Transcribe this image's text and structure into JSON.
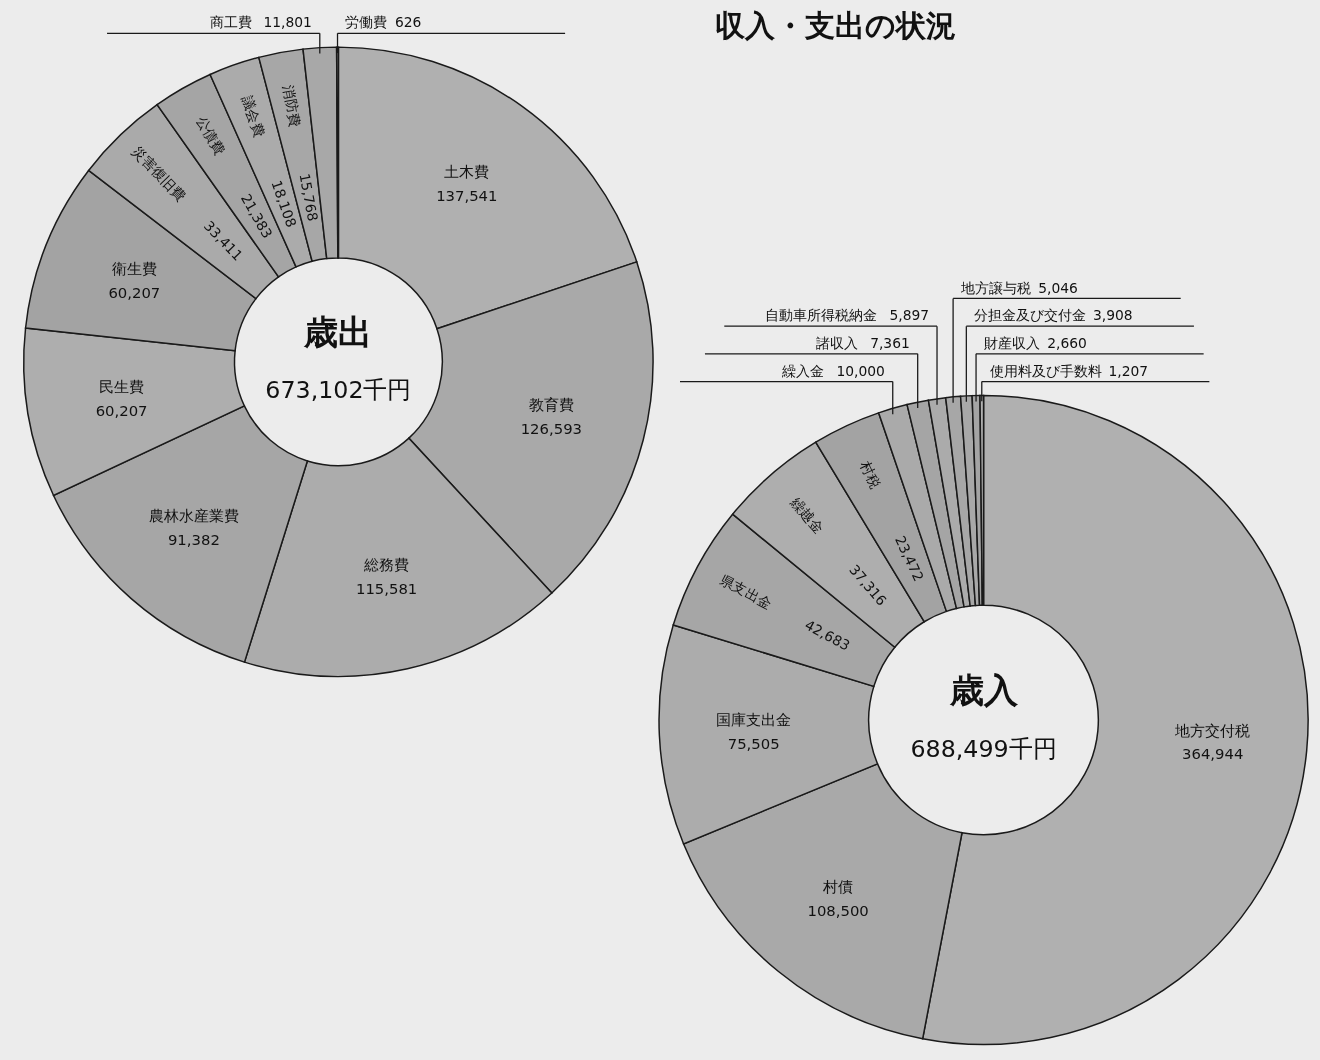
{
  "chart_data": [
    {
      "type": "donut",
      "title": "歳出",
      "annotations": [
        "673,102千円"
      ],
      "value_labels": [
        "137,541",
        "126,593",
        "115,581",
        "91,382",
        "60,207",
        "60,207",
        "33,411",
        "21,383",
        "18,108",
        "15,768",
        "11,801",
        "626"
      ],
      "categories": [
        "土木費",
        "教育費",
        "総務費",
        "農林水産業費",
        "民生費",
        "衛生費",
        "災害復旧費",
        "公債費",
        "議会費",
        "消防費",
        "商工費",
        "労働費"
      ],
      "values": [
        137541,
        126593,
        115581,
        91382,
        60207,
        60207,
        33411,
        21383,
        18108,
        15768,
        11801,
        626
      ],
      "colors": [
        "#b0b0b0",
        "#a9a9a9",
        "#acacac",
        "#a6a6a6",
        "#aeaeae",
        "#a3a3a3",
        "#aaaaaa",
        "#a5a5a5",
        "#ababab",
        "#a7a7a7",
        "#a8a8a8",
        "#a4a4a4"
      ]
    },
    {
      "type": "donut",
      "title": "歳入",
      "annotations": [
        "688,499千円",
        "収入・支出の状況"
      ],
      "value_labels": [
        "364,944",
        "108,500",
        "75,505",
        "42,683",
        "37,316",
        "23,472",
        "10,000",
        "7,361",
        "5,897",
        "5,046",
        "3,908",
        "2,660",
        "1,207"
      ],
      "categories": [
        "地方交付税",
        "村債",
        "国庫支出金",
        "県支出金",
        "繰越金",
        "村税",
        "繰入金",
        "諸収入",
        "自動車所得税納金",
        "地方譲与税",
        "分担金及び交付金",
        "財産収入",
        "使用料及び手数料"
      ],
      "values": [
        364944,
        108500,
        75505,
        42683,
        37316,
        23472,
        10000,
        7361,
        5897,
        5046,
        3908,
        2660,
        1207
      ],
      "colors": [
        "#aaaaaa",
        "#a8a8a8",
        "#b0b0b0",
        "#a9a9a9",
        "#a6a6a6",
        "#ababab",
        "#a5a5a5",
        "#a7a7a7",
        "#adadad",
        "#a4a4a4",
        "#aeaeae",
        "#a3a3a3",
        "#acacac"
      ]
    }
  ]
}
